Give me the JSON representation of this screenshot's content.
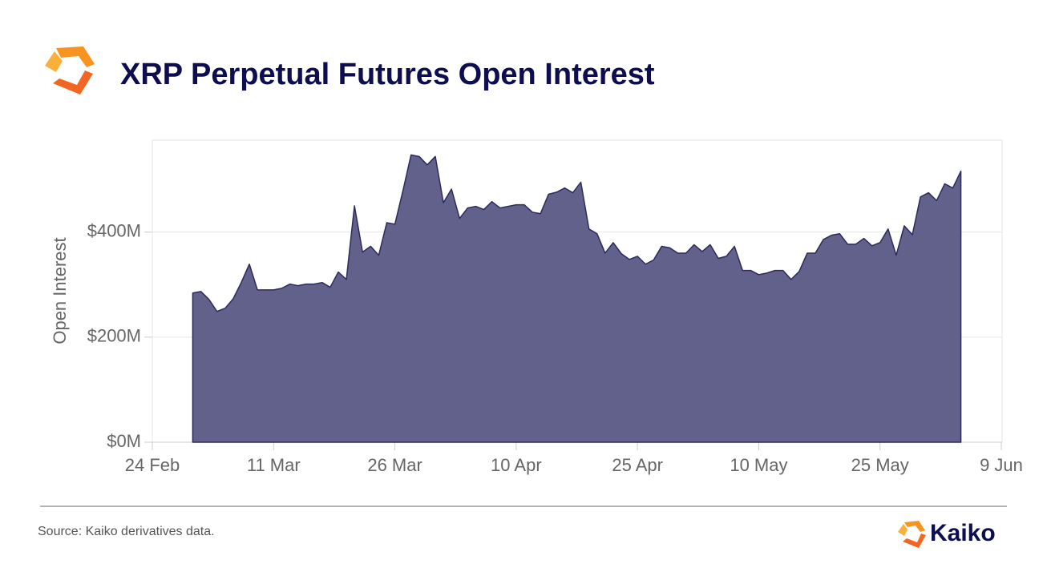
{
  "chart_data": {
    "type": "area",
    "title": "XRP Perpetual Futures Open Interest",
    "ylabel": "Open Interest",
    "source": "Source: Kaiko derivatives data.",
    "brand": "Kaiko",
    "color": "#62618b",
    "line_color": "#2c2b5c",
    "grid": true,
    "ylim": [
      0,
      575
    ],
    "yticks": [
      {
        "value": 0,
        "label": "$0M"
      },
      {
        "value": 200,
        "label": "$200M"
      },
      {
        "value": 400,
        "label": "$400M"
      }
    ],
    "xlim": [
      "24 Feb",
      "9 Jun"
    ],
    "xticks": [
      "24 Feb",
      "11 Mar",
      "26 Mar",
      "10 Apr",
      "25 Apr",
      "10 May",
      "25 May",
      "9 Jun"
    ],
    "x": [
      "1 Mar",
      "2 Mar",
      "3 Mar",
      "4 Mar",
      "5 Mar",
      "6 Mar",
      "7 Mar",
      "8 Mar",
      "9 Mar",
      "10 Mar",
      "11 Mar",
      "12 Mar",
      "13 Mar",
      "14 Mar",
      "15 Mar",
      "16 Mar",
      "17 Mar",
      "18 Mar",
      "19 Mar",
      "20 Mar",
      "21 Mar",
      "22 Mar",
      "23 Mar",
      "24 Mar",
      "25 Mar",
      "26 Mar",
      "27 Mar",
      "28 Mar",
      "29 Mar",
      "30 Mar",
      "31 Mar",
      "1 Apr",
      "2 Apr",
      "3 Apr",
      "4 Apr",
      "5 Apr",
      "6 Apr",
      "7 Apr",
      "8 Apr",
      "9 Apr",
      "10 Apr",
      "11 Apr",
      "12 Apr",
      "13 Apr",
      "14 Apr",
      "15 Apr",
      "16 Apr",
      "17 Apr",
      "18 Apr",
      "19 Apr",
      "20 Apr",
      "21 Apr",
      "22 Apr",
      "23 Apr",
      "24 Apr",
      "25 Apr",
      "26 Apr",
      "27 Apr",
      "28 Apr",
      "29 Apr",
      "30 Apr",
      "1 May",
      "2 May",
      "3 May",
      "4 May",
      "5 May",
      "6 May",
      "7 May",
      "8 May",
      "9 May",
      "10 May",
      "11 May",
      "12 May",
      "13 May",
      "14 May",
      "15 May",
      "16 May",
      "17 May",
      "18 May",
      "19 May",
      "20 May",
      "21 May",
      "22 May",
      "23 May",
      "24 May",
      "25 May",
      "26 May",
      "27 May",
      "28 May",
      "29 May",
      "30 May",
      "31 May",
      "1 Jun",
      "2 Jun",
      "3 Jun",
      "4 Jun"
    ],
    "values": [
      284,
      287,
      272,
      249,
      255,
      273,
      304,
      339,
      290,
      290,
      290,
      293,
      301,
      298,
      301,
      301,
      304,
      295,
      324,
      310,
      450,
      362,
      373,
      356,
      418,
      415,
      479,
      547,
      544,
      528,
      544,
      456,
      482,
      426,
      446,
      449,
      443,
      458,
      446,
      449,
      452,
      452,
      438,
      435,
      472,
      476,
      484,
      475,
      495,
      406,
      397,
      360,
      380,
      359,
      348,
      354,
      339,
      347,
      373,
      370,
      360,
      360,
      376,
      363,
      376,
      350,
      354,
      373,
      327,
      327,
      319,
      322,
      327,
      327,
      310,
      325,
      360,
      360,
      386,
      394,
      397,
      377,
      377,
      388,
      374,
      380,
      406,
      356,
      412,
      395,
      467,
      475,
      460,
      492,
      484,
      516
    ]
  }
}
